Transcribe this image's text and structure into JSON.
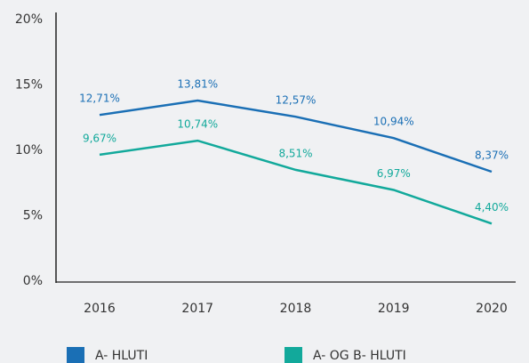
{
  "chart_data": {
    "type": "line",
    "categories": [
      "2016",
      "2017",
      "2018",
      "2019",
      "2020"
    ],
    "series": [
      {
        "name": "A- HLUTI",
        "color": "#1a6fb5",
        "values": [
          12.71,
          13.81,
          12.57,
          10.94,
          8.37
        ],
        "value_labels": [
          "12,71%",
          "13,81%",
          "12,57%",
          "10,94%",
          "8,37%"
        ]
      },
      {
        "name": "A- OG B- HLUTI",
        "color": "#12a99b",
        "values": [
          9.67,
          10.74,
          8.51,
          6.97,
          4.4
        ],
        "value_labels": [
          "9,67%",
          "10,74%",
          "8,51%",
          "6,97%",
          "4,40%"
        ]
      }
    ],
    "ylim": [
      0,
      20
    ],
    "yticks": [
      {
        "value": 0,
        "label": "0%"
      },
      {
        "value": 5,
        "label": "5%"
      },
      {
        "value": 10,
        "label": "10%"
      },
      {
        "value": 15,
        "label": "15%"
      },
      {
        "value": 20,
        "label": "20%"
      }
    ],
    "grid": false
  }
}
